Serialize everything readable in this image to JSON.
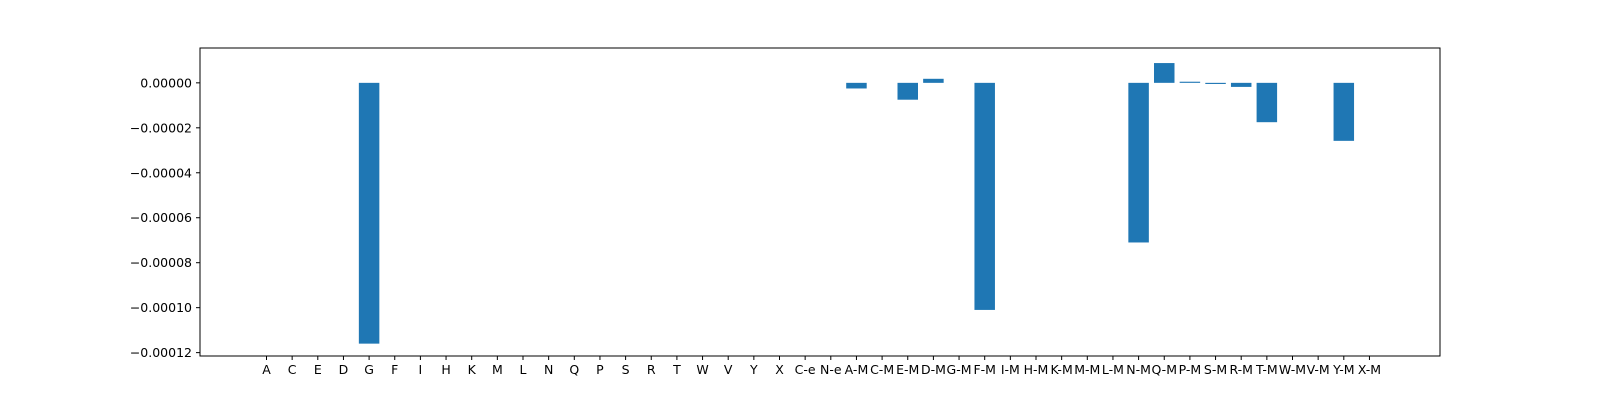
{
  "chart_data": {
    "type": "bar",
    "categories": [
      "A",
      "C",
      "E",
      "D",
      "G",
      "F",
      "I",
      "H",
      "K",
      "M",
      "L",
      "N",
      "Q",
      "P",
      "S",
      "R",
      "T",
      "W",
      "V",
      "Y",
      "X",
      "C-e",
      "N-e",
      "A-M",
      "C-M",
      "E-M",
      "D-M",
      "G-M",
      "F-M",
      "I-M",
      "H-M",
      "K-M",
      "M-M",
      "L-M",
      "N-M",
      "Q-M",
      "P-M",
      "S-M",
      "R-M",
      "T-M",
      "W-M",
      "V-M",
      "Y-M",
      "X-M"
    ],
    "values": [
      0,
      0,
      0,
      0,
      -0.000116,
      0,
      0,
      0,
      0,
      0,
      0,
      0,
      0,
      0,
      0,
      0,
      0,
      0,
      0,
      0,
      0,
      0,
      0,
      -2.5e-06,
      0,
      -7.5e-06,
      1.8e-06,
      0,
      -0.000101,
      0,
      0,
      0,
      0,
      0,
      -7.1e-05,
      8.8e-06,
      5e-07,
      -5e-07,
      -1.8e-06,
      -1.75e-05,
      0,
      0,
      -2.58e-05,
      0
    ],
    "yticks": [
      0,
      -2e-05,
      -4e-05,
      -6e-05,
      -8e-05,
      -0.0001,
      -0.00012
    ],
    "ytick_labels": [
      "0.00000",
      "−0.00002",
      "−0.00004",
      "−0.00006",
      "−0.00008",
      "−0.00010",
      "−0.00012"
    ],
    "ylim": [
      -0.0001215,
      1.55e-05
    ],
    "title": "",
    "xlabel": "",
    "ylabel": "",
    "grid": false,
    "bar_color": "#1f77b4"
  }
}
